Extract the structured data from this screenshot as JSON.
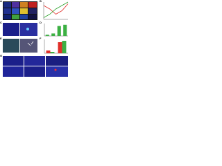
{
  "panels": [
    "A",
    "B",
    "C",
    "D",
    "E",
    "F",
    "G"
  ],
  "chart_data": [
    {
      "type": "line",
      "x": [
        0,
        1,
        2,
        3,
        4
      ],
      "xlim": [
        0,
        4
      ],
      "ylim": [
        0,
        10
      ],
      "series": [
        {
          "name": null,
          "color": "#e0302a",
          "values": [
            8,
            6,
            3,
            5,
            9
          ]
        },
        {
          "name": null,
          "color": "#2aa02a",
          "values": [
            1,
            3,
            6,
            8,
            10
          ]
        }
      ]
    },
    {
      "type": "bar",
      "categories": [
        null,
        null,
        null,
        null
      ],
      "values": [
        1,
        2,
        8,
        9
      ],
      "color": "#3cb043",
      "ylim": [
        0,
        10
      ]
    },
    {
      "type": "groupbar",
      "categories": [
        null,
        null
      ],
      "ylim": [
        0,
        10
      ],
      "series": [
        {
          "name": null,
          "color": "#e0302a",
          "values": [
            2,
            8
          ]
        },
        {
          "name": null,
          "color": "#3cb043",
          "values": [
            1,
            9
          ]
        }
      ]
    }
  ]
}
